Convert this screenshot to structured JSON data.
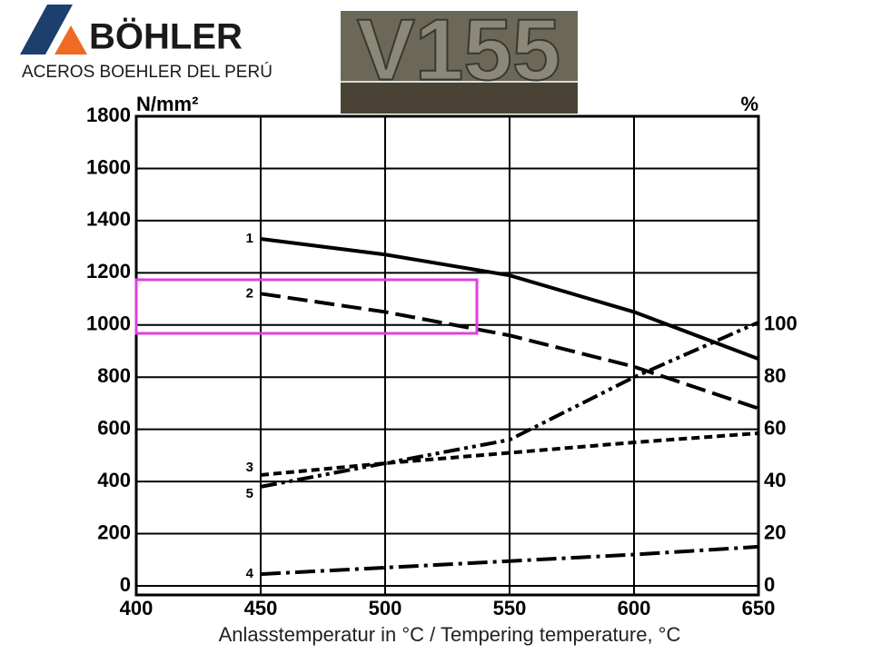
{
  "header": {
    "brand": "BÖHLER",
    "subtitle": "ACEROS BOEHLER DEL PERÚ",
    "badge": "V155"
  },
  "chart_data": {
    "type": "line",
    "x_label": "Anlasstemperatur in °C / Tempering temperature, °C",
    "y_label": "N/mm²",
    "y2_label": "%",
    "x": [
      450,
      500,
      550,
      600,
      650
    ],
    "xlim": [
      400,
      650
    ],
    "xticks": [
      400,
      450,
      500,
      550,
      600,
      650
    ],
    "ylim": [
      0,
      1800
    ],
    "yticks": [
      0,
      200,
      400,
      600,
      800,
      1000,
      1200,
      1400,
      1600,
      1800
    ],
    "y2lim": [
      0,
      180
    ],
    "y2ticks": [
      0,
      20,
      40,
      60,
      80,
      100
    ],
    "grid": true,
    "series": [
      {
        "name": "1",
        "color": "#000000",
        "style": "solid",
        "values": [
          1330,
          1270,
          1190,
          1050,
          870
        ]
      },
      {
        "name": "2",
        "color": "#000000",
        "style": "dashed",
        "values": [
          1120,
          1050,
          960,
          840,
          680
        ]
      },
      {
        "name": "3",
        "color": "#000000",
        "style": "dotted",
        "axis": "y2",
        "values": [
          42.5,
          47,
          51,
          55,
          58.5
        ]
      },
      {
        "name": "4",
        "color": "#000000",
        "style": "dashdot",
        "axis": "y2",
        "values": [
          4.5,
          7,
          9.5,
          12,
          15
        ]
      },
      {
        "name": "5",
        "color": "#000000",
        "style": "dashdotdot",
        "axis": "y2",
        "values": [
          38,
          47,
          56,
          80,
          101
        ]
      }
    ]
  }
}
